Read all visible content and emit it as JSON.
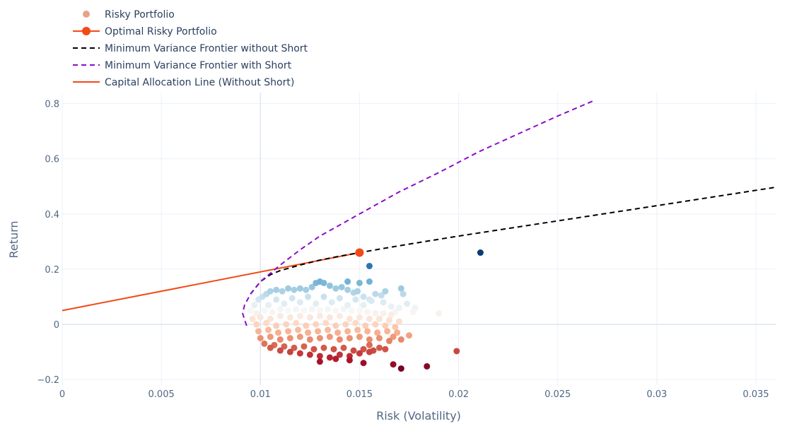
{
  "chart_data": {
    "type": "scatter",
    "xlabel": "Risk (Volatility)",
    "ylabel": "Return",
    "xlim": [
      0,
      0.036
    ],
    "ylim": [
      -0.22,
      0.84
    ],
    "x_ticks": [
      0,
      0.005,
      0.01,
      0.015,
      0.02,
      0.025,
      0.03,
      0.035
    ],
    "x_tick_labels": [
      "0",
      "0.005",
      "0.01",
      "0.015",
      "0.02",
      "0.025",
      "0.03",
      "0.035"
    ],
    "y_ticks": [
      -0.2,
      0,
      0.2,
      0.4,
      0.6,
      0.8
    ],
    "y_tick_labels": [
      "−0.2",
      "0",
      "0.2",
      "0.4",
      "0.6",
      "0.8"
    ],
    "grid": true,
    "legend_position": "top-left",
    "legend": [
      {
        "label": "Risky Portfolio",
        "symbol": "marker",
        "color": "#e8a28a"
      },
      {
        "label": "Optimal Risky Portfolio",
        "symbol": "line-marker",
        "color": "#f24a16"
      },
      {
        "label": "Minimum Variance Frontier without Short",
        "symbol": "dash",
        "color": "#000000"
      },
      {
        "label": "Minimum Variance Frontier with Short",
        "symbol": "dash",
        "color": "#8a0ec9"
      },
      {
        "label": "Capital Allocation Line (Without Short)",
        "symbol": "line",
        "color": "#f24a16"
      }
    ],
    "series": [
      {
        "name": "Risky Portfolio",
        "colorscale": "RdBu (red = low return, blue = high return)",
        "points": [
          [
            0.0097,
            0.07
          ],
          [
            0.0099,
            0.09
          ],
          [
            0.0101,
            0.1
          ],
          [
            0.0103,
            0.11
          ],
          [
            0.0105,
            0.12
          ],
          [
            0.0108,
            0.125
          ],
          [
            0.0111,
            0.12
          ],
          [
            0.0114,
            0.13
          ],
          [
            0.0117,
            0.125
          ],
          [
            0.012,
            0.13
          ],
          [
            0.0123,
            0.125
          ],
          [
            0.0126,
            0.135
          ],
          [
            0.0128,
            0.15
          ],
          [
            0.013,
            0.155
          ],
          [
            0.0132,
            0.15
          ],
          [
            0.0135,
            0.14
          ],
          [
            0.0138,
            0.13
          ],
          [
            0.0141,
            0.135
          ],
          [
            0.0144,
            0.125
          ],
          [
            0.0147,
            0.115
          ],
          [
            0.0149,
            0.12
          ],
          [
            0.0152,
            0.1
          ],
          [
            0.0155,
            0.09
          ],
          [
            0.0158,
            0.11
          ],
          [
            0.0161,
            0.105
          ],
          [
            0.0163,
            0.12
          ],
          [
            0.0144,
            0.155
          ],
          [
            0.015,
            0.15
          ],
          [
            0.0155,
            0.155
          ],
          [
            0.0171,
            0.13
          ],
          [
            0.0172,
            0.11
          ],
          [
            0.0174,
            0.075
          ],
          [
            0.0162,
            0.08
          ],
          [
            0.0166,
            0.065
          ],
          [
            0.017,
            0.06
          ],
          [
            0.0178,
            0.06
          ],
          [
            0.0177,
            0.045
          ],
          [
            0.019,
            0.04
          ],
          [
            0.0168,
            0.045
          ],
          [
            0.0155,
            0.2115
          ],
          [
            0.0211,
            0.26
          ],
          [
            0.0095,
            0.05
          ],
          [
            0.0098,
            0.04
          ],
          [
            0.0102,
            0.05
          ],
          [
            0.0106,
            0.045
          ],
          [
            0.011,
            0.055
          ],
          [
            0.0114,
            0.05
          ],
          [
            0.0118,
            0.055
          ],
          [
            0.0122,
            0.05
          ],
          [
            0.0126,
            0.055
          ],
          [
            0.013,
            0.05
          ],
          [
            0.0134,
            0.055
          ],
          [
            0.0138,
            0.05
          ],
          [
            0.0142,
            0.055
          ],
          [
            0.0146,
            0.05
          ],
          [
            0.015,
            0.05
          ],
          [
            0.0154,
            0.045
          ],
          [
            0.0158,
            0.04
          ],
          [
            0.0162,
            0.04
          ],
          [
            0.0166,
            0.035
          ],
          [
            0.0104,
            0.07
          ],
          [
            0.0112,
            0.075
          ],
          [
            0.012,
            0.08
          ],
          [
            0.0128,
            0.075
          ],
          [
            0.0136,
            0.08
          ],
          [
            0.0144,
            0.07
          ],
          [
            0.0152,
            0.07
          ],
          [
            0.0108,
            0.09
          ],
          [
            0.0116,
            0.095
          ],
          [
            0.0124,
            0.1
          ],
          [
            0.0132,
            0.1
          ],
          [
            0.014,
            0.095
          ],
          [
            0.0148,
            0.09
          ],
          [
            0.0156,
            0.085
          ],
          [
            0.0096,
            0.02
          ],
          [
            0.01,
            0.025
          ],
          [
            0.0105,
            0.02
          ],
          [
            0.011,
            0.03
          ],
          [
            0.0115,
            0.025
          ],
          [
            0.012,
            0.03
          ],
          [
            0.0125,
            0.025
          ],
          [
            0.013,
            0.03
          ],
          [
            0.0135,
            0.025
          ],
          [
            0.014,
            0.03
          ],
          [
            0.0145,
            0.02
          ],
          [
            0.015,
            0.025
          ],
          [
            0.0155,
            0.02
          ],
          [
            0.016,
            0.02
          ],
          [
            0.0165,
            0.015
          ],
          [
            0.017,
            0.01
          ],
          [
            0.0098,
            0.0
          ],
          [
            0.0103,
            0.005
          ],
          [
            0.0108,
            -0.005
          ],
          [
            0.0113,
            0.0
          ],
          [
            0.0118,
            0.005
          ],
          [
            0.0123,
            -0.005
          ],
          [
            0.0128,
            0.0
          ],
          [
            0.0133,
            0.005
          ],
          [
            0.0138,
            -0.005
          ],
          [
            0.0143,
            0.0
          ],
          [
            0.0148,
            0.005
          ],
          [
            0.0153,
            -0.005
          ],
          [
            0.0158,
            0.0
          ],
          [
            0.0163,
            -0.005
          ],
          [
            0.0168,
            -0.01
          ],
          [
            0.0099,
            -0.025
          ],
          [
            0.0104,
            -0.02
          ],
          [
            0.0109,
            -0.03
          ],
          [
            0.0114,
            -0.025
          ],
          [
            0.0119,
            -0.02
          ],
          [
            0.0124,
            -0.03
          ],
          [
            0.0129,
            -0.025
          ],
          [
            0.0134,
            -0.02
          ],
          [
            0.0139,
            -0.03
          ],
          [
            0.0144,
            -0.025
          ],
          [
            0.0149,
            -0.02
          ],
          [
            0.0154,
            -0.025
          ],
          [
            0.0159,
            -0.03
          ],
          [
            0.0164,
            -0.025
          ],
          [
            0.0169,
            -0.03
          ],
          [
            0.0175,
            -0.04
          ],
          [
            0.0167,
            -0.045
          ],
          [
            0.0171,
            -0.055
          ],
          [
            0.01,
            -0.05
          ],
          [
            0.0105,
            -0.045
          ],
          [
            0.011,
            -0.055
          ],
          [
            0.0115,
            -0.05
          ],
          [
            0.012,
            -0.045
          ],
          [
            0.0125,
            -0.055
          ],
          [
            0.013,
            -0.05
          ],
          [
            0.0135,
            -0.045
          ],
          [
            0.014,
            -0.055
          ],
          [
            0.0145,
            -0.05
          ],
          [
            0.015,
            -0.045
          ],
          [
            0.0155,
            -0.055
          ],
          [
            0.016,
            -0.05
          ],
          [
            0.0165,
            -0.06
          ],
          [
            0.0155,
            -0.075
          ],
          [
            0.016,
            -0.085
          ],
          [
            0.0163,
            -0.09
          ],
          [
            0.0199,
            -0.097
          ],
          [
            0.0102,
            -0.07
          ],
          [
            0.0107,
            -0.075
          ],
          [
            0.0112,
            -0.08
          ],
          [
            0.0117,
            -0.085
          ],
          [
            0.0122,
            -0.08
          ],
          [
            0.0127,
            -0.09
          ],
          [
            0.0132,
            -0.085
          ],
          [
            0.0137,
            -0.09
          ],
          [
            0.0142,
            -0.085
          ],
          [
            0.0147,
            -0.095
          ],
          [
            0.0152,
            -0.09
          ],
          [
            0.0157,
            -0.095
          ],
          [
            0.0105,
            -0.085
          ],
          [
            0.011,
            -0.095
          ],
          [
            0.0115,
            -0.1
          ],
          [
            0.012,
            -0.105
          ],
          [
            0.0125,
            -0.11
          ],
          [
            0.013,
            -0.115
          ],
          [
            0.0135,
            -0.12
          ],
          [
            0.014,
            -0.11
          ],
          [
            0.0145,
            -0.115
          ],
          [
            0.015,
            -0.105
          ],
          [
            0.0155,
            -0.1
          ],
          [
            0.013,
            -0.135
          ],
          [
            0.0138,
            -0.125
          ],
          [
            0.0145,
            -0.13
          ],
          [
            0.0152,
            -0.14
          ],
          [
            0.0167,
            -0.145
          ],
          [
            0.0171,
            -0.16
          ],
          [
            0.0184,
            -0.152
          ]
        ]
      },
      {
        "name": "Optimal Risky Portfolio",
        "x": [
          0.015
        ],
        "y": [
          0.26
        ]
      },
      {
        "name": "Minimum Variance Frontier without Short",
        "x": [
          0.0095,
          0.01,
          0.0105,
          0.011,
          0.012,
          0.013,
          0.014,
          0.015,
          0.017,
          0.02,
          0.025,
          0.03,
          0.036
        ],
        "y": [
          0.11,
          0.155,
          0.18,
          0.195,
          0.215,
          0.233,
          0.247,
          0.26,
          0.285,
          0.32,
          0.375,
          0.43,
          0.497
        ]
      },
      {
        "name": "Minimum Variance Frontier with Short",
        "x": [
          0.0093,
          0.0091,
          0.0092,
          0.0095,
          0.01,
          0.0105,
          0.011,
          0.012,
          0.013,
          0.014,
          0.015,
          0.017,
          0.019,
          0.021,
          0.023,
          0.025,
          0.0268
        ],
        "y": [
          -0.005,
          0.04,
          0.07,
          0.11,
          0.155,
          0.185,
          0.215,
          0.27,
          0.32,
          0.36,
          0.4,
          0.48,
          0.55,
          0.625,
          0.69,
          0.755,
          0.81
        ]
      },
      {
        "name": "Capital Allocation Line (Without Short)",
        "x": [
          0,
          0.015
        ],
        "y": [
          0.05,
          0.26
        ]
      }
    ]
  }
}
